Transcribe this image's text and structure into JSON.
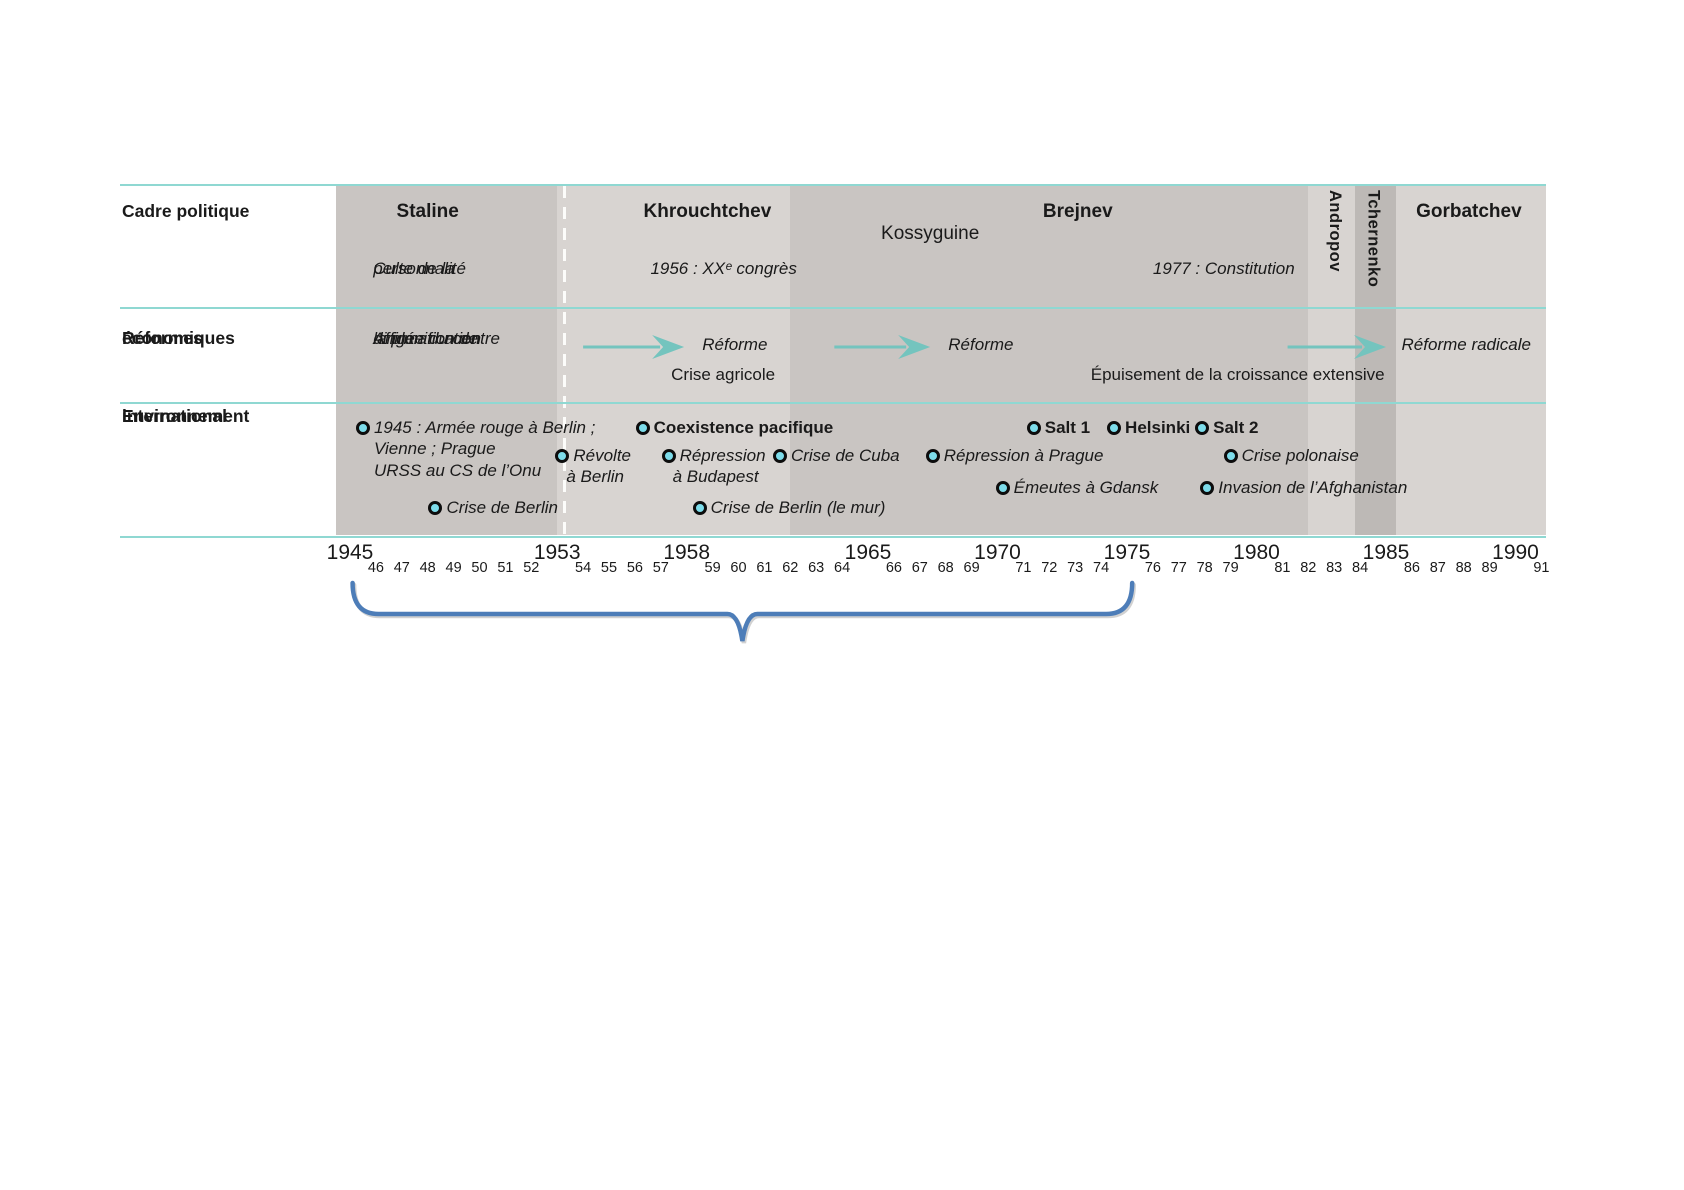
{
  "colors": {
    "band_medium": "#c9c5c2",
    "band_light": "#d8d4d1",
    "band_dark": "#bdb9b6",
    "separator_teal": "#8fd8d2",
    "arrow_teal": "#74c4be",
    "bullet_fill": "#7ddcea",
    "bullet_ring": "#0d0d0d",
    "brace_blue": "#4d7db8",
    "text": "#1a1a1a"
  },
  "row_labels": [
    {
      "id": "cadre-politique",
      "lines": [
        "Cadre politique"
      ]
    },
    {
      "id": "reformes-economiques",
      "lines": [
        "Réformes",
        "économiques"
      ]
    },
    {
      "id": "environnement-international",
      "lines": [
        "Environnement",
        "international"
      ]
    }
  ],
  "eras": [
    {
      "name": "Staline",
      "from": 1944.4,
      "to": 1953.0,
      "shade": "medium"
    },
    {
      "name": "Khrouchtchev",
      "from": 1953.0,
      "to": 1962.0,
      "shade": "light"
    },
    {
      "name": "Brejnev",
      "from": 1962.0,
      "to": 1982.0,
      "shade": "medium"
    },
    {
      "name": "Andropov",
      "from": 1982.0,
      "to": 1983.8,
      "shade": "light"
    },
    {
      "name": "Tchernenko",
      "from": 1983.8,
      "to": 1985.4,
      "shade": "dark"
    },
    {
      "name": "Gorbatchev",
      "from": 1985.4,
      "to": 1991.2,
      "shade": "light"
    }
  ],
  "leaders": [
    {
      "name": "Staline",
      "year": 1948.0,
      "bold": true,
      "vertical": false,
      "row": 1
    },
    {
      "name": "Khrouchtchev",
      "year": 1958.8,
      "bold": true,
      "vertical": false,
      "row": 1
    },
    {
      "name": "Kossyguine",
      "year": 1967.4,
      "bold": false,
      "vertical": false,
      "row": 2
    },
    {
      "name": "Brejnev",
      "year": 1973.1,
      "bold": true,
      "vertical": false,
      "row": 1
    },
    {
      "name": "Andropov",
      "year": 1983.1,
      "bold": true,
      "vertical": true,
      "row": 1
    },
    {
      "name": "Tchernenko",
      "year": 1984.6,
      "bold": true,
      "vertical": true,
      "row": 1
    },
    {
      "name": "Gorbatchev",
      "year": 1988.2,
      "bold": true,
      "vertical": false,
      "row": 1
    }
  ],
  "cadre_notes": [
    {
      "year": 1945.9,
      "lines": [
        "Culte de la",
        "personnalité"
      ]
    },
    {
      "year": 1956.6,
      "lines": [
        "1956 : XXᵉ congrès"
      ]
    },
    {
      "year": 1976.0,
      "lines": [
        "1977 : Constitution"
      ]
    }
  ],
  "reformes": {
    "plan_note": {
      "year": 1945.9,
      "lines": [
        "Affirmation de",
        "la planification",
        "dirigée du centre"
      ]
    },
    "arrows": [
      {
        "from": 1954.0,
        "to": 1957.9
      },
      {
        "from": 1963.7,
        "to": 1967.4
      },
      {
        "from": 1981.2,
        "to": 1985.0
      }
    ],
    "labels": [
      {
        "year": 1958.6,
        "text": "Réforme",
        "italic": true,
        "line": "top"
      },
      {
        "year": 1957.4,
        "text": "Crise agricole",
        "italic": false,
        "line": "bottom"
      },
      {
        "year": 1968.1,
        "text": "Réforme",
        "italic": true,
        "line": "top"
      },
      {
        "year": 1973.6,
        "text": "Épuisement de la croissance extensive",
        "italic": false,
        "line": "bottom"
      },
      {
        "year": 1985.6,
        "text": "Réforme radicale",
        "italic": true,
        "line": "top"
      }
    ]
  },
  "events_rows": [
    [
      {
        "year": 1945.5,
        "text": "1945 : Armée rouge à Berlin ;",
        "extra_lines": [
          "Vienne ; Prague",
          "URSS au CS de l’Onu"
        ],
        "style": "italic"
      },
      {
        "year": 1956.3,
        "text": "Coexistence pacifique",
        "style": "bold"
      },
      {
        "year": 1971.4,
        "text": "Salt 1",
        "style": "bold"
      },
      {
        "year": 1974.5,
        "text": "Helsinki",
        "style": "bold"
      },
      {
        "year": 1977.9,
        "text": "Salt 2",
        "style": "bold"
      }
    ],
    [
      {
        "year": 1953.2,
        "text": "Révolte",
        "extra_lines": [
          "à Berlin"
        ],
        "style": "italic"
      },
      {
        "year": 1957.3,
        "text": "Répression",
        "extra_lines": [
          "à Budapest"
        ],
        "style": "italic"
      },
      {
        "year": 1961.6,
        "text": "Crise de Cuba",
        "style": "italic"
      },
      {
        "year": 1967.5,
        "text": "Répression à Prague",
        "style": "italic"
      },
      {
        "year": 1979.0,
        "text": "Crise polonaise",
        "style": "italic"
      }
    ],
    [
      {
        "year": 1970.2,
        "text": "Émeutes à Gdansk",
        "style": "italic"
      },
      {
        "year": 1978.1,
        "text": "Invasion de l’Afghanistan",
        "style": "italic"
      }
    ],
    [
      {
        "year": 1948.3,
        "text": "Crise de Berlin",
        "style": "italic"
      },
      {
        "year": 1958.5,
        "text": "Crise de Berlin (le mur)",
        "style": "italic"
      }
    ]
  ],
  "axis": {
    "big_years": [
      1945,
      1953,
      1958,
      1965,
      1970,
      1975,
      1980,
      1985,
      1990
    ],
    "small_years": [
      46,
      47,
      48,
      49,
      50,
      51,
      52,
      54,
      55,
      56,
      57,
      59,
      60,
      61,
      62,
      63,
      64,
      66,
      67,
      68,
      69,
      71,
      72,
      73,
      74,
      76,
      77,
      78,
      79,
      81,
      82,
      83,
      84,
      86,
      87,
      88,
      89,
      91
    ]
  },
  "brace": {
    "from_year": 1945.1,
    "to_year": 1975.2
  }
}
